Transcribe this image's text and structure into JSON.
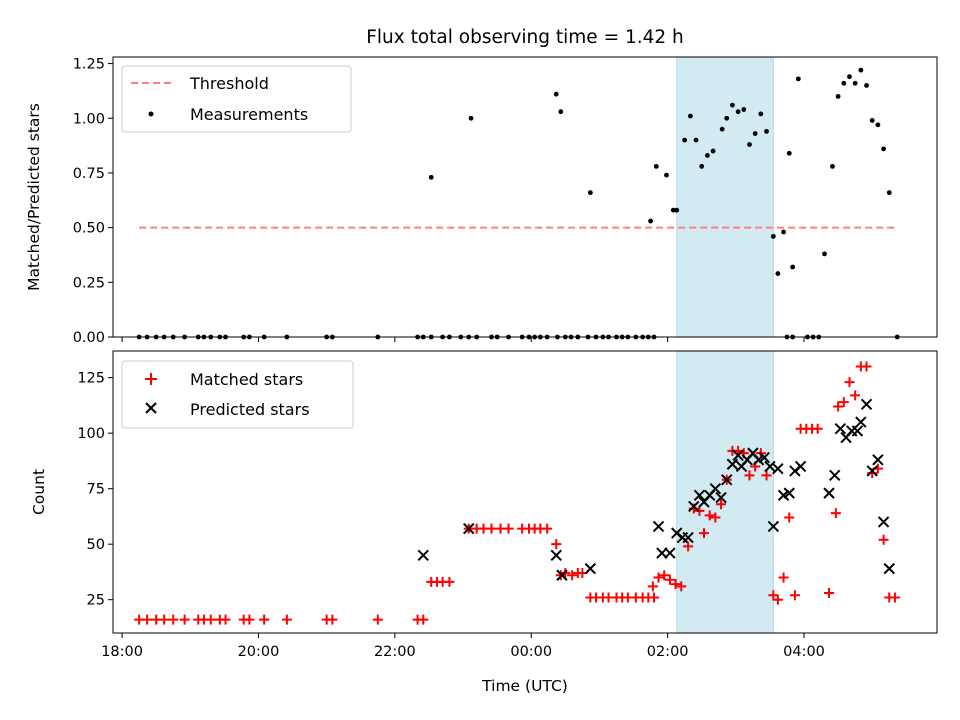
{
  "chart_data": [
    {
      "type": "scatter",
      "title": "Flux total observing time = 1.42 h",
      "xlabel": "",
      "ylabel": "Matched/Predicted stars",
      "xlim": [
        "17:52",
        "05:57"
      ],
      "ylim": [
        0,
        1.28
      ],
      "yticks": [
        "0.00",
        "0.25",
        "0.50",
        "0.75",
        "1.00",
        "1.25"
      ],
      "shaded_region": [
        "02:08",
        "03:33"
      ],
      "legend": "upper-left",
      "series": [
        {
          "name": "Threshold",
          "style": "dashed-line",
          "color": "#ff7f7f",
          "points": [
            [
              "18:15",
              0.5
            ],
            [
              "05:20",
              0.5
            ]
          ]
        },
        {
          "name": "Measurements",
          "style": "dots",
          "color": "#000000",
          "points": [
            [
              "18:15",
              0
            ],
            [
              "18:22",
              0
            ],
            [
              "18:30",
              0
            ],
            [
              "18:37",
              0
            ],
            [
              "18:45",
              0
            ],
            [
              "18:55",
              0
            ],
            [
              "19:07",
              0
            ],
            [
              "19:12",
              0
            ],
            [
              "19:18",
              0
            ],
            [
              "19:26",
              0
            ],
            [
              "19:31",
              0
            ],
            [
              "19:47",
              0
            ],
            [
              "19:52",
              0
            ],
            [
              "20:05",
              0
            ],
            [
              "20:25",
              0
            ],
            [
              "21:00",
              0
            ],
            [
              "21:05",
              0
            ],
            [
              "21:45",
              0
            ],
            [
              "22:20",
              0
            ],
            [
              "22:25",
              0
            ],
            [
              "22:32",
              0
            ],
            [
              "22:42",
              0
            ],
            [
              "22:48",
              0
            ],
            [
              "22:58",
              0
            ],
            [
              "23:05",
              0
            ],
            [
              "23:12",
              0
            ],
            [
              "23:25",
              0
            ],
            [
              "23:30",
              0
            ],
            [
              "23:40",
              0
            ],
            [
              "23:52",
              0
            ],
            [
              "23:58",
              0
            ],
            [
              "00:03",
              0
            ],
            [
              "00:08",
              0
            ],
            [
              "00:14",
              0
            ],
            [
              "00:23",
              0
            ],
            [
              "00:30",
              0
            ],
            [
              "00:35",
              0
            ],
            [
              "00:41",
              0
            ],
            [
              "00:50",
              0
            ],
            [
              "00:57",
              0
            ],
            [
              "01:03",
              0
            ],
            [
              "01:08",
              0
            ],
            [
              "01:15",
              0
            ],
            [
              "01:20",
              0
            ],
            [
              "01:25",
              0
            ],
            [
              "01:32",
              0
            ],
            [
              "01:38",
              0
            ],
            [
              "01:43",
              0
            ],
            [
              "01:48",
              0
            ],
            [
              "03:45",
              0
            ],
            [
              "03:50",
              0
            ],
            [
              "04:03",
              0
            ],
            [
              "04:08",
              0
            ],
            [
              "04:13",
              0
            ],
            [
              "05:22",
              0
            ],
            [
              "22:32",
              0.73
            ],
            [
              "23:07",
              1.0
            ],
            [
              "00:22",
              1.11
            ],
            [
              "00:26",
              1.03
            ],
            [
              "00:52",
              0.66
            ],
            [
              "01:45",
              0.53
            ],
            [
              "01:50",
              0.78
            ],
            [
              "01:59",
              0.74
            ],
            [
              "02:05",
              0.58
            ],
            [
              "02:08",
              0.58
            ],
            [
              "02:15",
              0.9
            ],
            [
              "02:20",
              1.01
            ],
            [
              "02:25",
              0.9
            ],
            [
              "02:30",
              0.78
            ],
            [
              "02:35",
              0.83
            ],
            [
              "02:40",
              0.85
            ],
            [
              "02:48",
              0.95
            ],
            [
              "02:52",
              1.0
            ],
            [
              "02:57",
              1.06
            ],
            [
              "03:02",
              1.03
            ],
            [
              "03:07",
              1.04
            ],
            [
              "03:12",
              0.88
            ],
            [
              "03:17",
              0.93
            ],
            [
              "03:22",
              1.02
            ],
            [
              "03:27",
              0.94
            ],
            [
              "03:33",
              0.46
            ],
            [
              "03:37",
              0.29
            ],
            [
              "03:42",
              0.48
            ],
            [
              "03:47",
              0.84
            ],
            [
              "03:50",
              0.32
            ],
            [
              "03:55",
              1.18
            ],
            [
              "04:18",
              0.38
            ],
            [
              "04:25",
              0.78
            ],
            [
              "04:30",
              1.1
            ],
            [
              "04:35",
              1.16
            ],
            [
              "04:40",
              1.19
            ],
            [
              "04:45",
              1.16
            ],
            [
              "04:50",
              1.22
            ],
            [
              "04:55",
              1.15
            ],
            [
              "05:00",
              0.99
            ],
            [
              "05:05",
              0.97
            ],
            [
              "05:10",
              0.86
            ],
            [
              "05:15",
              0.66
            ]
          ]
        }
      ]
    },
    {
      "type": "scatter",
      "title": "",
      "xlabel": "Time (UTC)",
      "ylabel": "Count",
      "xlim": [
        "17:52",
        "05:57"
      ],
      "ylim": [
        10,
        137
      ],
      "xticks": [
        "18:00",
        "20:00",
        "22:00",
        "00:00",
        "02:00",
        "04:00"
      ],
      "yticks": [
        "25",
        "50",
        "75",
        "100",
        "125"
      ],
      "shaded_region": [
        "02:08",
        "03:33"
      ],
      "legend": "upper-left",
      "series": [
        {
          "name": "Matched stars",
          "style": "plus",
          "color": "#ff0000",
          "points": [
            [
              "18:15",
              16
            ],
            [
              "18:22",
              16
            ],
            [
              "18:30",
              16
            ],
            [
              "18:37",
              16
            ],
            [
              "18:45",
              16
            ],
            [
              "18:55",
              16
            ],
            [
              "19:07",
              16
            ],
            [
              "19:12",
              16
            ],
            [
              "19:18",
              16
            ],
            [
              "19:26",
              16
            ],
            [
              "19:31",
              16
            ],
            [
              "19:47",
              16
            ],
            [
              "19:52",
              16
            ],
            [
              "20:05",
              16
            ],
            [
              "20:25",
              16
            ],
            [
              "21:00",
              16
            ],
            [
              "21:05",
              16
            ],
            [
              "21:45",
              16
            ],
            [
              "22:20",
              16
            ],
            [
              "22:25",
              16
            ],
            [
              "22:32",
              33
            ],
            [
              "22:37",
              33
            ],
            [
              "22:42",
              33
            ],
            [
              "22:48",
              33
            ],
            [
              "23:05",
              57
            ],
            [
              "23:12",
              57
            ],
            [
              "23:18",
              57
            ],
            [
              "23:25",
              57
            ],
            [
              "23:33",
              57
            ],
            [
              "23:40",
              57
            ],
            [
              "23:52",
              57
            ],
            [
              "23:58",
              57
            ],
            [
              "00:03",
              57
            ],
            [
              "00:08",
              57
            ],
            [
              "00:14",
              57
            ],
            [
              "00:22",
              50
            ],
            [
              "00:26",
              36
            ],
            [
              "00:30",
              37
            ],
            [
              "00:36",
              36
            ],
            [
              "00:41",
              37
            ],
            [
              "00:45",
              37
            ],
            [
              "00:52",
              26
            ],
            [
              "00:57",
              26
            ],
            [
              "01:03",
              26
            ],
            [
              "01:08",
              26
            ],
            [
              "01:15",
              26
            ],
            [
              "01:20",
              26
            ],
            [
              "01:25",
              26
            ],
            [
              "01:32",
              26
            ],
            [
              "01:38",
              26
            ],
            [
              "01:43",
              26
            ],
            [
              "01:48",
              26
            ],
            [
              "01:47",
              31
            ],
            [
              "01:52",
              35
            ],
            [
              "01:57",
              36
            ],
            [
              "02:02",
              34
            ],
            [
              "02:07",
              32
            ],
            [
              "02:12",
              31
            ],
            [
              "02:18",
              49
            ],
            [
              "02:23",
              66
            ],
            [
              "02:28",
              65
            ],
            [
              "02:32",
              55
            ],
            [
              "02:37",
              63
            ],
            [
              "02:42",
              62
            ],
            [
              "02:47",
              68
            ],
            [
              "02:52",
              79
            ],
            [
              "02:57",
              92
            ],
            [
              "03:02",
              92
            ],
            [
              "03:07",
              91
            ],
            [
              "03:12",
              81
            ],
            [
              "03:17",
              85
            ],
            [
              "03:22",
              91
            ],
            [
              "03:27",
              81
            ],
            [
              "03:33",
              27
            ],
            [
              "03:37",
              25
            ],
            [
              "03:42",
              35
            ],
            [
              "03:47",
              62
            ],
            [
              "03:52",
              27
            ],
            [
              "03:57",
              102
            ],
            [
              "04:02",
              102
            ],
            [
              "04:07",
              102
            ],
            [
              "04:12",
              102
            ],
            [
              "04:22",
              28
            ],
            [
              "04:28",
              64
            ],
            [
              "04:30",
              112
            ],
            [
              "04:35",
              114
            ],
            [
              "04:40",
              123
            ],
            [
              "04:45",
              117
            ],
            [
              "04:50",
              130
            ],
            [
              "04:55",
              130
            ],
            [
              "05:00",
              82
            ],
            [
              "05:05",
              84
            ],
            [
              "05:10",
              52
            ],
            [
              "05:15",
              26
            ],
            [
              "05:20",
              26
            ]
          ]
        },
        {
          "name": "Predicted stars",
          "style": "x",
          "color": "#000000",
          "points": [
            [
              "22:25",
              45
            ],
            [
              "23:05",
              57
            ],
            [
              "00:22",
              45
            ],
            [
              "00:27",
              36
            ],
            [
              "00:52",
              39
            ],
            [
              "01:52",
              58
            ],
            [
              "01:55",
              46
            ],
            [
              "02:02",
              46
            ],
            [
              "02:08",
              55
            ],
            [
              "02:13",
              53
            ],
            [
              "02:18",
              53
            ],
            [
              "02:23",
              67
            ],
            [
              "02:28",
              72
            ],
            [
              "02:32",
              69
            ],
            [
              "02:37",
              72
            ],
            [
              "02:42",
              75
            ],
            [
              "02:47",
              71
            ],
            [
              "02:52",
              79
            ],
            [
              "02:57",
              86
            ],
            [
              "03:02",
              90
            ],
            [
              "03:05",
              85
            ],
            [
              "03:10",
              88
            ],
            [
              "03:15",
              91
            ],
            [
              "03:20",
              88
            ],
            [
              "03:25",
              89
            ],
            [
              "03:30",
              85
            ],
            [
              "03:33",
              58
            ],
            [
              "03:37",
              84
            ],
            [
              "03:42",
              72
            ],
            [
              "03:47",
              73
            ],
            [
              "03:52",
              83
            ],
            [
              "03:57",
              85
            ],
            [
              "04:22",
              73
            ],
            [
              "04:27",
              81
            ],
            [
              "04:32",
              102
            ],
            [
              "04:37",
              98
            ],
            [
              "04:42",
              101
            ],
            [
              "04:47",
              101
            ],
            [
              "04:50",
              105
            ],
            [
              "04:55",
              113
            ],
            [
              "05:00",
              83
            ],
            [
              "05:05",
              88
            ],
            [
              "05:10",
              60
            ],
            [
              "05:15",
              39
            ]
          ]
        }
      ]
    }
  ]
}
